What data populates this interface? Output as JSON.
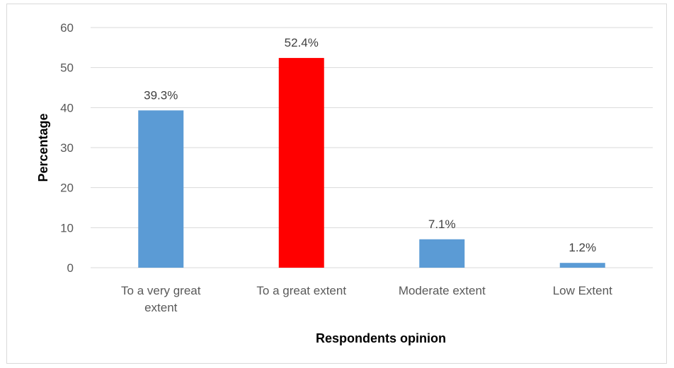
{
  "chart_data": {
    "type": "bar",
    "title": "",
    "xlabel": "Respondents opinion",
    "ylabel": "Percentage",
    "categories": [
      [
        "To a very great",
        "extent"
      ],
      [
        "To a great extent"
      ],
      [
        "Moderate extent"
      ],
      [
        "Low Extent"
      ]
    ],
    "values": [
      39.3,
      52.4,
      7.1,
      1.2
    ],
    "data_labels": [
      "39.3%",
      "52.4%",
      "7.1%",
      "1.2%"
    ],
    "bar_colors": [
      "#5b9bd5",
      "#ff0000",
      "#5b9bd5",
      "#5b9bd5"
    ],
    "ylim": [
      0,
      60
    ],
    "yticks": [
      0,
      10,
      20,
      30,
      40,
      50,
      60
    ],
    "grid": true,
    "legend": "none"
  }
}
